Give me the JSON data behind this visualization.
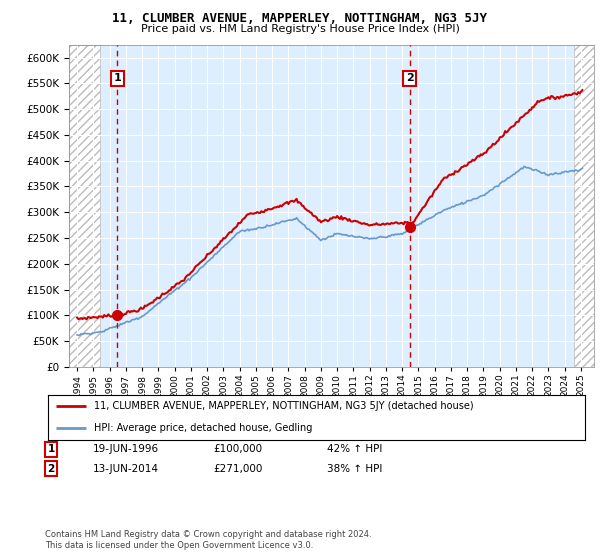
{
  "title": "11, CLUMBER AVENUE, MAPPERLEY, NOTTINGHAM, NG3 5JY",
  "subtitle": "Price paid vs. HM Land Registry's House Price Index (HPI)",
  "legend_line1": "11, CLUMBER AVENUE, MAPPERLEY, NOTTINGHAM, NG3 5JY (detached house)",
  "legend_line2": "HPI: Average price, detached house, Gedling",
  "annotation1_label": "1",
  "annotation1_date": "19-JUN-1996",
  "annotation1_price": "£100,000",
  "annotation1_hpi": "42% ↑ HPI",
  "annotation2_label": "2",
  "annotation2_date": "13-JUN-2014",
  "annotation2_price": "£271,000",
  "annotation2_hpi": "38% ↑ HPI",
  "footnote1": "Contains HM Land Registry data © Crown copyright and database right 2024.",
  "footnote2": "This data is licensed under the Open Government Licence v3.0.",
  "red_color": "#cc0000",
  "blue_color": "#6699cc",
  "grid_bg": "#ddeeff",
  "point1_x": 1996.47,
  "point1_y": 100000,
  "point2_x": 2014.45,
  "point2_y": 271000,
  "xlim": [
    1993.5,
    2025.8
  ],
  "ylim": [
    0,
    625000
  ],
  "yticks": [
    0,
    50000,
    100000,
    150000,
    200000,
    250000,
    300000,
    350000,
    400000,
    450000,
    500000,
    550000,
    600000
  ],
  "xticks": [
    1994,
    1995,
    1996,
    1997,
    1998,
    1999,
    2000,
    2001,
    2002,
    2003,
    2004,
    2005,
    2006,
    2007,
    2008,
    2009,
    2010,
    2011,
    2012,
    2013,
    2014,
    2015,
    2016,
    2017,
    2018,
    2019,
    2020,
    2021,
    2022,
    2023,
    2024,
    2025
  ]
}
